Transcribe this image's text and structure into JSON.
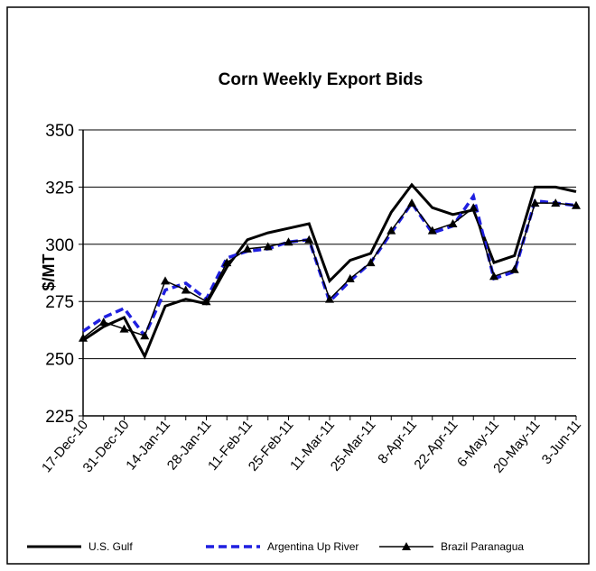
{
  "chart_data": {
    "type": "line",
    "title": "Corn Weekly Export Bids",
    "ylabel": "$/MT",
    "categories": [
      "17-Dec-10",
      null,
      "31-Dec-10",
      null,
      "14-Jan-11",
      null,
      "28-Jan-11",
      null,
      "11-Feb-11",
      null,
      "25-Feb-11",
      null,
      "11-Mar-11",
      null,
      "25-Mar-11",
      null,
      "8-Apr-11",
      null,
      "22-Apr-11",
      null,
      "6-May-11",
      null,
      "20-May-11",
      null,
      "3-Jun-11"
    ],
    "series": [
      {
        "name": "U.S. Gulf",
        "color": "#000000",
        "style": "solid",
        "marker": "none",
        "values": [
          258,
          264,
          268,
          251,
          273,
          276,
          274,
          290,
          302,
          305,
          307,
          309,
          284,
          293,
          296,
          314,
          326,
          316,
          313,
          315,
          292,
          295,
          325,
          325,
          323
        ]
      },
      {
        "name": "Argentina Up River",
        "color": "#1f1fe0",
        "style": "dashed",
        "marker": "none",
        "values": [
          262,
          268,
          272,
          260,
          280,
          283,
          276,
          294,
          297,
          298,
          301,
          302,
          275,
          284,
          292,
          305,
          318,
          305,
          308,
          321,
          285,
          288,
          319,
          318,
          317
        ]
      },
      {
        "name": "Brazil Paranagua",
        "color": "#000000",
        "style": "thin",
        "marker": "triangle",
        "values": [
          259,
          266,
          263,
          260,
          284,
          280,
          275,
          292,
          298,
          299,
          301,
          302,
          276,
          285,
          292,
          306,
          318,
          306,
          309,
          316,
          286,
          289,
          318,
          318,
          317
        ]
      }
    ],
    "ylim": [
      225,
      350
    ],
    "yticks": [
      225,
      250,
      275,
      300,
      325,
      350
    ],
    "grid": true,
    "legend": "bottom"
  }
}
